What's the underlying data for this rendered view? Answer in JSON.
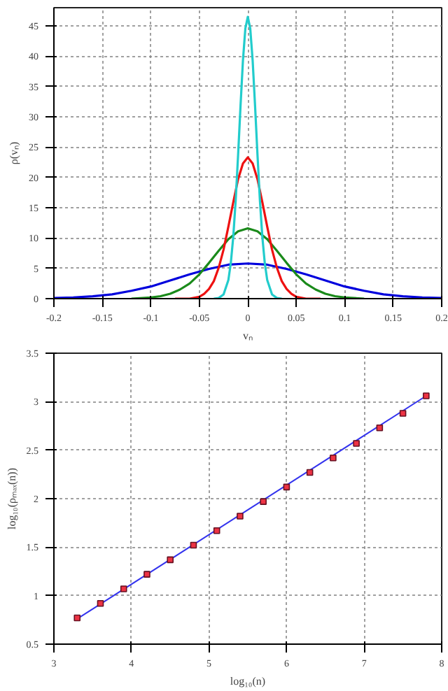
{
  "chart_data": [
    {
      "type": "line",
      "xlabel": "vₙ",
      "ylabel": "ρ(vₙ)",
      "xlim": [
        -0.2,
        0.2
      ],
      "ylim": [
        0,
        48
      ],
      "xticks": [
        -0.2,
        -0.15,
        -0.1,
        -0.05,
        0,
        0.05,
        0.1,
        0.15,
        0.2
      ],
      "yticks": [
        0,
        5,
        10,
        15,
        20,
        25,
        30,
        35,
        40,
        45
      ],
      "grid": true,
      "line_style": "solid",
      "series": [
        {
          "color": "#0000dd",
          "x": [
            -0.2,
            -0.18,
            -0.16,
            -0.14,
            -0.12,
            -0.1,
            -0.08,
            -0.06,
            -0.04,
            -0.02,
            0,
            0.02,
            0.04,
            0.06,
            0.08,
            0.1,
            0.12,
            0.14,
            0.16,
            0.18,
            0.2
          ],
          "values": [
            0.1,
            0.2,
            0.4,
            0.7,
            1.3,
            2,
            3,
            4,
            4.9,
            5.6,
            5.8,
            5.6,
            4.9,
            4,
            3,
            2,
            1.3,
            0.7,
            0.4,
            0.2,
            0.1
          ]
        },
        {
          "color": "#1a8a1a",
          "x": [
            -0.12,
            -0.1,
            -0.09,
            -0.08,
            -0.07,
            -0.06,
            -0.05,
            -0.04,
            -0.03,
            -0.02,
            -0.01,
            0,
            0.01,
            0.02,
            0.03,
            0.04,
            0.05,
            0.06,
            0.07,
            0.08,
            0.09,
            0.1,
            0.12
          ],
          "values": [
            0,
            0.2,
            0.4,
            0.8,
            1.5,
            2.5,
            4,
            5.9,
            7.9,
            9.8,
            11.1,
            11.6,
            11.1,
            9.8,
            7.9,
            5.9,
            4,
            2.5,
            1.5,
            0.8,
            0.4,
            0.2,
            0
          ]
        },
        {
          "color": "#ee1111",
          "x": [
            -0.075,
            -0.06,
            -0.05,
            -0.045,
            -0.04,
            -0.035,
            -0.03,
            -0.025,
            -0.02,
            -0.015,
            -0.01,
            -0.005,
            0,
            0.005,
            0.01,
            0.015,
            0.02,
            0.025,
            0.03,
            0.035,
            0.04,
            0.045,
            0.05,
            0.06,
            0.075
          ],
          "values": [
            0,
            0,
            0.3,
            0.8,
            1.6,
            2.9,
            5.1,
            8.1,
            11.9,
            15.9,
            19.7,
            22.3,
            23.3,
            22.3,
            19.7,
            15.9,
            11.9,
            8.1,
            5.1,
            2.9,
            1.6,
            0.8,
            0.3,
            0,
            0
          ]
        },
        {
          "color": "#22cccc",
          "x": [
            -0.035,
            -0.03,
            -0.025,
            -0.02,
            -0.0175,
            -0.015,
            -0.0125,
            -0.01,
            -0.0075,
            -0.005,
            -0.0025,
            0,
            0.0025,
            0.005,
            0.0075,
            0.01,
            0.0125,
            0.015,
            0.0175,
            0.02,
            0.025,
            0.03,
            0.035
          ],
          "values": [
            0,
            0.1,
            0.7,
            3.1,
            5.9,
            10.2,
            16.2,
            23.7,
            31.8,
            39.3,
            44.6,
            46.5,
            44.6,
            39.3,
            31.8,
            23.7,
            16.2,
            10.2,
            5.9,
            3.1,
            0.7,
            0.1,
            0
          ]
        }
      ]
    },
    {
      "type": "scatter",
      "xlabel": "log₁₀(n)",
      "ylabel": "log₁₀(ρₘₐₓ(n))",
      "xlim": [
        3,
        8
      ],
      "ylim": [
        0.5,
        3.5
      ],
      "xticks": [
        3,
        4,
        5,
        6,
        7,
        8
      ],
      "yticks": [
        0.5,
        1,
        1.5,
        2,
        2.5,
        3,
        3.5
      ],
      "grid": true,
      "series": [
        {
          "type": "line",
          "color": "#3333ee",
          "x": [
            3.3,
            7.8
          ],
          "values": [
            0.76,
            3.06
          ]
        },
        {
          "type": "scatter",
          "marker": "square",
          "color": "#ee3344",
          "x": [
            3.3,
            3.6,
            3.9,
            4.2,
            4.5,
            4.8,
            5.1,
            5.4,
            5.7,
            6.0,
            6.3,
            6.6,
            6.9,
            7.2,
            7.5,
            7.8
          ],
          "values": [
            0.77,
            0.92,
            1.07,
            1.22,
            1.37,
            1.52,
            1.67,
            1.82,
            1.97,
            2.12,
            2.27,
            2.42,
            2.57,
            2.73,
            2.88,
            3.06
          ]
        }
      ]
    }
  ]
}
